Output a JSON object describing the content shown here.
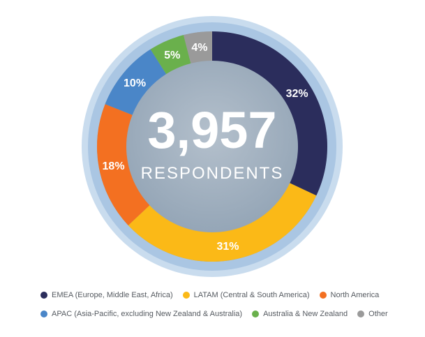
{
  "chart_data": {
    "type": "pie",
    "center_value": "3,957",
    "center_label": "RESPONDENTS",
    "slices": [
      {
        "label": "EMEA (Europe, Middle East, Africa)",
        "value": 32,
        "value_label": "32%",
        "color": "#2b2d5c"
      },
      {
        "label": "LATAM (Central & South America)",
        "value": 31,
        "value_label": "31%",
        "color": "#fbb917"
      },
      {
        "label": "North America",
        "value": 18,
        "value_label": "18%",
        "color": "#f37021"
      },
      {
        "label": "APAC (Asia-Pacific, excluding New Zealand & Australia)",
        "value": 10,
        "value_label": "10%",
        "color": "#4a86c8"
      },
      {
        "label": "Australia & New Zealand",
        "value": 5,
        "value_label": "5%",
        "color": "#6ab04c"
      },
      {
        "label": "Other",
        "value": 4,
        "value_label": "4%",
        "color": "#9a9a9a"
      }
    ]
  },
  "legend": {
    "row1": [
      0,
      1,
      2
    ],
    "row2": [
      3,
      4,
      5
    ]
  }
}
